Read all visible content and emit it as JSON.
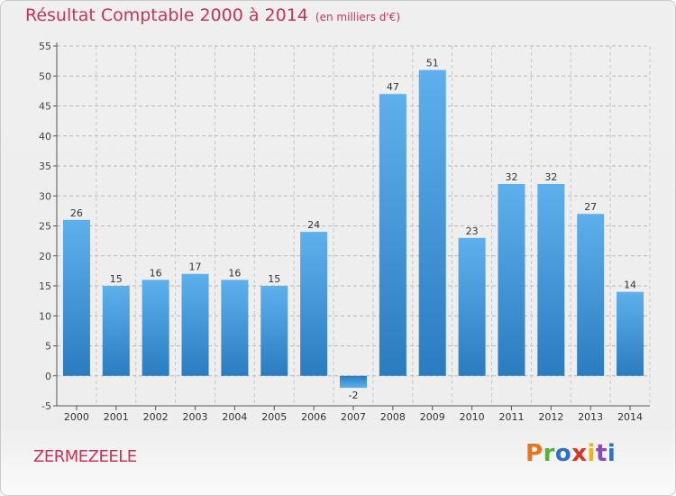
{
  "chart_data": {
    "type": "bar",
    "title": "Résultat Comptable 2000 à 2014",
    "subtitle": "(en milliers d'€)",
    "xlabel": "",
    "ylabel": "",
    "categories": [
      "2000",
      "2001",
      "2002",
      "2003",
      "2004",
      "2005",
      "2006",
      "2007",
      "2008",
      "2009",
      "2010",
      "2011",
      "2012",
      "2013",
      "2014"
    ],
    "values": [
      26,
      15,
      16,
      17,
      16,
      15,
      24,
      -2,
      47,
      51,
      23,
      32,
      32,
      27,
      14
    ],
    "ylim": [
      -5,
      55
    ],
    "yticks": [
      -5,
      0,
      5,
      10,
      15,
      20,
      25,
      30,
      35,
      40,
      45,
      50,
      55
    ],
    "grid": true,
    "bar_color": "#3d8fd4"
  },
  "footer": {
    "city": "ZERMEZEELE",
    "logo": "Proxiti",
    "logo_colors": [
      "#e8731b",
      "#55b138",
      "#2f72c4",
      "#d8342c",
      "#f1b21a",
      "#8d4bb0",
      "#2f72c4"
    ]
  }
}
